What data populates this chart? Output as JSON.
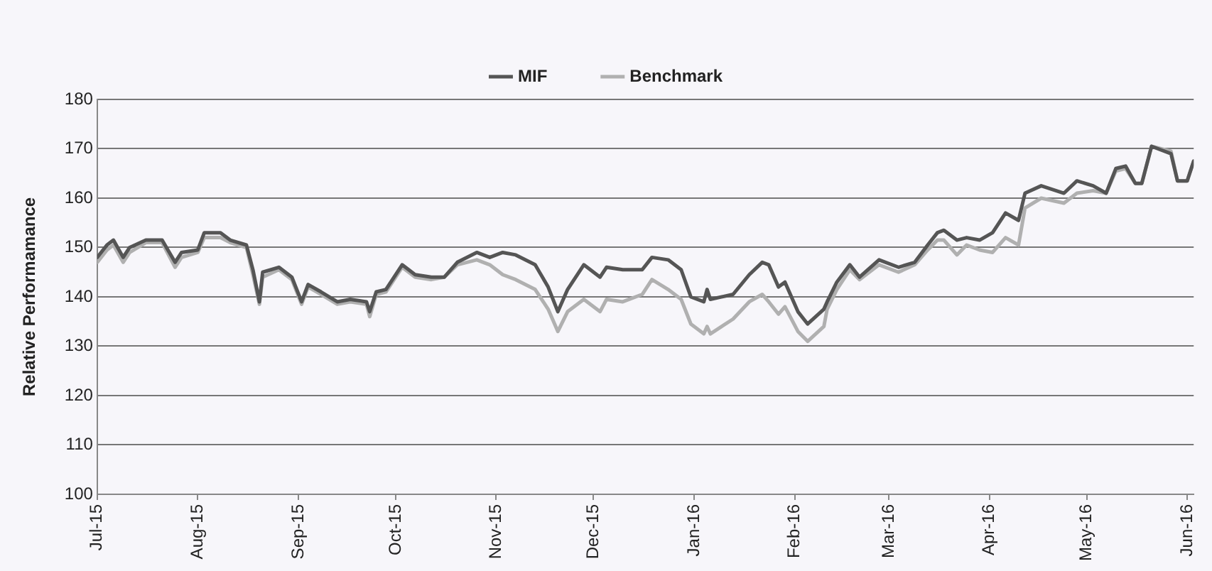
{
  "chart_data": {
    "type": "line",
    "ylabel": "Relative Performamance",
    "legend": "top",
    "grid": "y",
    "marker": "none",
    "line_style": "solid",
    "xlim": [
      "2015-07-01",
      "2016-06-03"
    ],
    "xticks": [
      {
        "value": "2015-07-01",
        "label": "Jul-15"
      },
      {
        "value": "2015-08-01",
        "label": "Aug-15"
      },
      {
        "value": "2015-09-01",
        "label": "Sep-15"
      },
      {
        "value": "2015-10-01",
        "label": "Oct-15"
      },
      {
        "value": "2015-11-01",
        "label": "Nov-15"
      },
      {
        "value": "2015-12-01",
        "label": "Dec-15"
      },
      {
        "value": "2016-01-01",
        "label": "Jan-16"
      },
      {
        "value": "2016-02-01",
        "label": "Feb-16"
      },
      {
        "value": "2016-03-01",
        "label": "Mar-16"
      },
      {
        "value": "2016-04-01",
        "label": "Apr-16"
      },
      {
        "value": "2016-05-01",
        "label": "May-16"
      },
      {
        "value": "2016-06-01",
        "label": "Jun-16"
      }
    ],
    "ylim": [
      100,
      180
    ],
    "yticks": [
      100,
      110,
      120,
      130,
      140,
      150,
      160,
      170,
      180
    ],
    "x": [
      "2015-07-01",
      "2015-07-04",
      "2015-07-06",
      "2015-07-09",
      "2015-07-11",
      "2015-07-16",
      "2015-07-21",
      "2015-07-25",
      "2015-07-27",
      "2015-08-01",
      "2015-08-03",
      "2015-08-08",
      "2015-08-11",
      "2015-08-16",
      "2015-08-18",
      "2015-08-20",
      "2015-08-21",
      "2015-08-26",
      "2015-08-30",
      "2015-09-02",
      "2015-09-04",
      "2015-09-08",
      "2015-09-13",
      "2015-09-17",
      "2015-09-22",
      "2015-09-23",
      "2015-09-25",
      "2015-09-28",
      "2015-10-03",
      "2015-10-07",
      "2015-10-12",
      "2015-10-16",
      "2015-10-20",
      "2015-10-26",
      "2015-10-30",
      "2015-11-03",
      "2015-11-07",
      "2015-11-13",
      "2015-11-17",
      "2015-11-20",
      "2015-11-23",
      "2015-11-28",
      "2015-12-03",
      "2015-12-05",
      "2015-12-10",
      "2015-12-16",
      "2015-12-19",
      "2015-12-24",
      "2015-12-28",
      "2015-12-31",
      "2016-01-04",
      "2016-01-05",
      "2016-01-06",
      "2016-01-13",
      "2016-01-18",
      "2016-01-22",
      "2016-01-24",
      "2016-01-27",
      "2016-01-29",
      "2016-02-02",
      "2016-02-05",
      "2016-02-10",
      "2016-02-11",
      "2016-02-14",
      "2016-02-18",
      "2016-02-21",
      "2016-02-27",
      "2016-03-04",
      "2016-03-09",
      "2016-03-13",
      "2016-03-16",
      "2016-03-18",
      "2016-03-22",
      "2016-03-25",
      "2016-03-29",
      "2016-04-02",
      "2016-04-06",
      "2016-04-10",
      "2016-04-12",
      "2016-04-17",
      "2016-04-24",
      "2016-04-28",
      "2016-05-03",
      "2016-05-07",
      "2016-05-10",
      "2016-05-13",
      "2016-05-16",
      "2016-05-18",
      "2016-05-21",
      "2016-05-27",
      "2016-05-29",
      "2016-06-01",
      "2016-06-03"
    ],
    "series": [
      {
        "name": "MIF",
        "color": "#555555",
        "values": [
          148,
          150.5,
          151.5,
          148,
          150,
          151.5,
          151.5,
          147,
          149,
          149.5,
          153,
          153,
          151.5,
          150.5,
          145.5,
          139,
          145,
          146,
          144,
          139,
          142.5,
          141,
          139,
          139.5,
          139,
          137,
          141,
          141.5,
          146.5,
          144.5,
          144,
          144,
          147,
          149,
          148,
          149,
          148.5,
          146.5,
          142,
          137,
          141.5,
          146.5,
          144,
          146,
          145.5,
          145.5,
          148,
          147.5,
          145.5,
          140,
          139,
          141.5,
          139.5,
          140.5,
          144.5,
          147,
          146.5,
          142,
          143,
          137,
          134.5,
          137.5,
          139,
          143,
          146.5,
          144,
          147.5,
          146,
          147,
          150.5,
          153,
          153.5,
          151.5,
          152,
          151.5,
          153,
          157,
          155.5,
          161,
          162.5,
          161,
          163.5,
          162.5,
          161,
          166,
          166.5,
          163,
          163,
          170.5,
          169,
          163.5,
          163.5,
          167.5
        ]
      },
      {
        "name": "Benchmark",
        "color": "#b0b0b0",
        "values": [
          147,
          149.5,
          150.5,
          147,
          149,
          151,
          151,
          146,
          148,
          149,
          152,
          152,
          151,
          150,
          144.5,
          138.5,
          144,
          145.5,
          143.5,
          138.5,
          142,
          140.5,
          138.5,
          139,
          138.5,
          136,
          140.5,
          141,
          146,
          144,
          143.5,
          144,
          146.5,
          147.5,
          146.5,
          144.5,
          143.5,
          141.5,
          137.5,
          133,
          137,
          139.5,
          137,
          139.5,
          139,
          140.5,
          143.5,
          141.5,
          139.5,
          134.5,
          132.5,
          134,
          132.5,
          135.5,
          139,
          140.5,
          139,
          136.5,
          138,
          133,
          131,
          134,
          137.5,
          141.5,
          145.5,
          143.5,
          146.5,
          145,
          146.5,
          149.5,
          151.5,
          151.5,
          148.5,
          150.5,
          149.5,
          149,
          152,
          150.5,
          158,
          160,
          159,
          161,
          161.5,
          161,
          165.5,
          166,
          163,
          163,
          170.5,
          169.5,
          163.5,
          163.5,
          167.5
        ]
      }
    ]
  }
}
